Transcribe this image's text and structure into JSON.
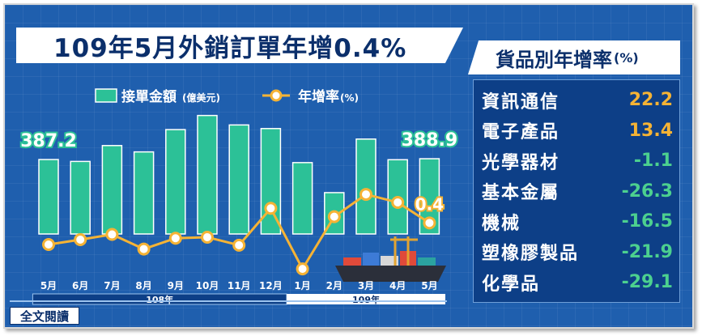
{
  "title": {
    "main": "109年5月外銷訂單年增0.4%"
  },
  "rates_panel": {
    "title": "貨品別年增率",
    "unit": "(%)",
    "rows": [
      {
        "name": "資訊通信",
        "value": "22.2",
        "color": "#f5b335"
      },
      {
        "name": "電子產品",
        "value": "13.4",
        "color": "#f5b335"
      },
      {
        "name": "光學器材",
        "value": "-1.1",
        "color": "#4cd08f"
      },
      {
        "name": "基本金屬",
        "value": "-26.3",
        "color": "#4cd08f"
      },
      {
        "name": "機械",
        "value": "-16.5",
        "color": "#4cd08f"
      },
      {
        "name": "塑橡膠製品",
        "value": "-21.9",
        "color": "#4cd08f"
      },
      {
        "name": "化學品",
        "value": "-29.1",
        "color": "#4cd08f"
      }
    ]
  },
  "read_button": {
    "label": "全文閱讀"
  },
  "colors": {
    "bar": "#2cc197",
    "line": "#f5b335",
    "background": "#1f5fae"
  },
  "chart_data": {
    "type": "bar",
    "categories": [
      "5月",
      "6月",
      "7月",
      "8月",
      "9月",
      "10月",
      "11月",
      "12月",
      "1月",
      "2月",
      "3月",
      "4月",
      "5月"
    ],
    "year_groups": [
      {
        "label": "108年",
        "from": 0,
        "to": 7
      },
      {
        "label": "109年",
        "from": 8,
        "to": 12
      }
    ],
    "series": [
      {
        "name": "接單金額",
        "unit": "(億美元)",
        "kind": "bar",
        "values": [
          387.2,
          383.2,
          416.7,
          403.3,
          450.4,
          480.2,
          460.2,
          452.6,
          380.7,
          317.3,
          430.4,
          386.8,
          388.9
        ]
      },
      {
        "name": "年增率",
        "unit": "(%)",
        "kind": "line",
        "values": [
          -5.8,
          -4.4,
          -2.9,
          -7.1,
          -4.0,
          -3.7,
          -6.0,
          4.6,
          -12.8,
          2.2,
          8.6,
          6.3,
          0.4
        ]
      }
    ],
    "data_labels": [
      {
        "series": 0,
        "index": 0,
        "text": "387.2"
      },
      {
        "series": 0,
        "index": 12,
        "text": "388.9"
      },
      {
        "series": 1,
        "index": 12,
        "text": "0.4"
      }
    ],
    "legend": "top"
  }
}
